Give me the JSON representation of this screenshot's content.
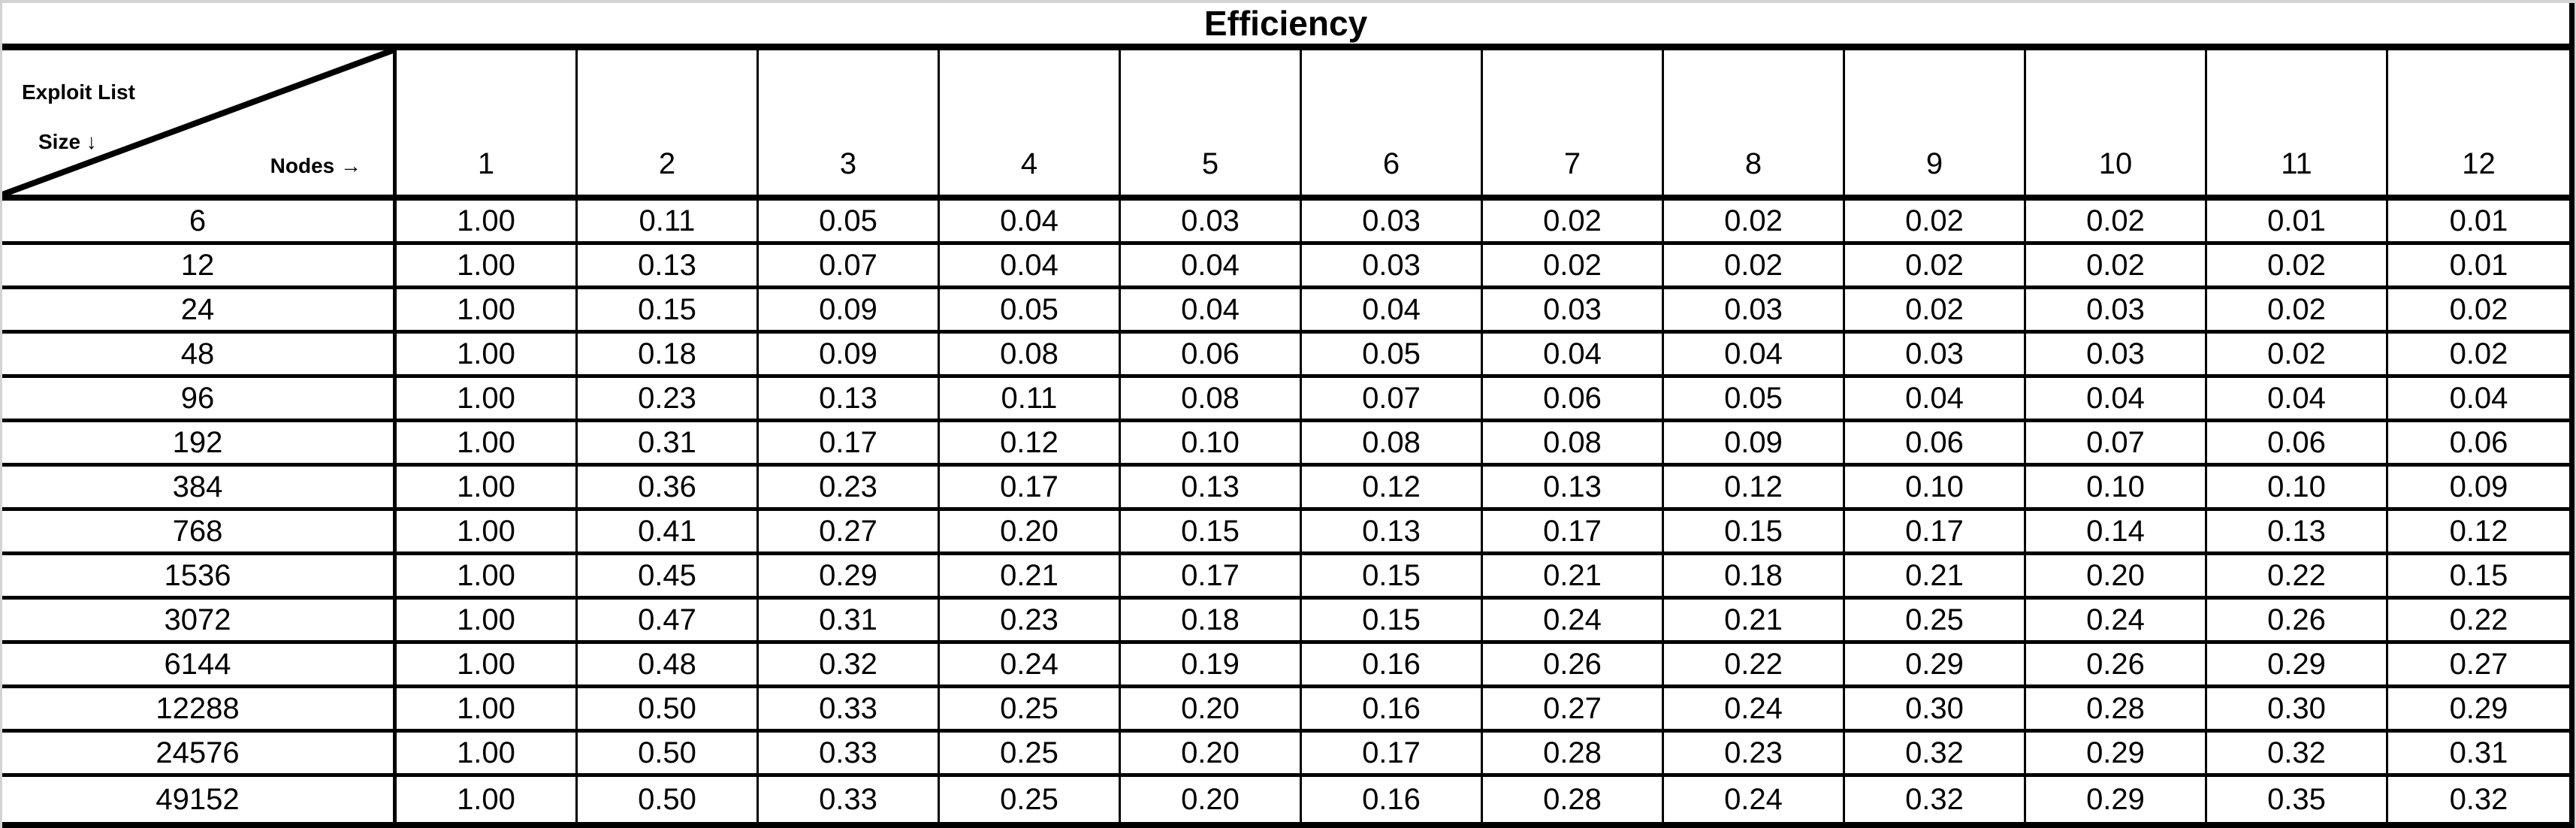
{
  "title": "Efficiency",
  "corner": {
    "line1": "Exploit List",
    "line2": "Size ↓",
    "line3": "Nodes →"
  },
  "columns": [
    "1",
    "2",
    "3",
    "4",
    "5",
    "6",
    "7",
    "8",
    "9",
    "10",
    "11",
    "12"
  ],
  "rows": [
    {
      "label": "6",
      "values": [
        "1.00",
        "0.11",
        "0.05",
        "0.04",
        "0.03",
        "0.03",
        "0.02",
        "0.02",
        "0.02",
        "0.02",
        "0.01",
        "0.01"
      ]
    },
    {
      "label": "12",
      "values": [
        "1.00",
        "0.13",
        "0.07",
        "0.04",
        "0.04",
        "0.03",
        "0.02",
        "0.02",
        "0.02",
        "0.02",
        "0.02",
        "0.01"
      ]
    },
    {
      "label": "24",
      "values": [
        "1.00",
        "0.15",
        "0.09",
        "0.05",
        "0.04",
        "0.04",
        "0.03",
        "0.03",
        "0.02",
        "0.03",
        "0.02",
        "0.02"
      ]
    },
    {
      "label": "48",
      "values": [
        "1.00",
        "0.18",
        "0.09",
        "0.08",
        "0.06",
        "0.05",
        "0.04",
        "0.04",
        "0.03",
        "0.03",
        "0.02",
        "0.02"
      ]
    },
    {
      "label": "96",
      "values": [
        "1.00",
        "0.23",
        "0.13",
        "0.11",
        "0.08",
        "0.07",
        "0.06",
        "0.05",
        "0.04",
        "0.04",
        "0.04",
        "0.04"
      ]
    },
    {
      "label": "192",
      "values": [
        "1.00",
        "0.31",
        "0.17",
        "0.12",
        "0.10",
        "0.08",
        "0.08",
        "0.09",
        "0.06",
        "0.07",
        "0.06",
        "0.06"
      ]
    },
    {
      "label": "384",
      "values": [
        "1.00",
        "0.36",
        "0.23",
        "0.17",
        "0.13",
        "0.12",
        "0.13",
        "0.12",
        "0.10",
        "0.10",
        "0.10",
        "0.09"
      ]
    },
    {
      "label": "768",
      "values": [
        "1.00",
        "0.41",
        "0.27",
        "0.20",
        "0.15",
        "0.13",
        "0.17",
        "0.15",
        "0.17",
        "0.14",
        "0.13",
        "0.12"
      ]
    },
    {
      "label": "1536",
      "values": [
        "1.00",
        "0.45",
        "0.29",
        "0.21",
        "0.17",
        "0.15",
        "0.21",
        "0.18",
        "0.21",
        "0.20",
        "0.22",
        "0.15"
      ]
    },
    {
      "label": "3072",
      "values": [
        "1.00",
        "0.47",
        "0.31",
        "0.23",
        "0.18",
        "0.15",
        "0.24",
        "0.21",
        "0.25",
        "0.24",
        "0.26",
        "0.22"
      ]
    },
    {
      "label": "6144",
      "values": [
        "1.00",
        "0.48",
        "0.32",
        "0.24",
        "0.19",
        "0.16",
        "0.26",
        "0.22",
        "0.29",
        "0.26",
        "0.29",
        "0.27"
      ]
    },
    {
      "label": "12288",
      "values": [
        "1.00",
        "0.50",
        "0.33",
        "0.25",
        "0.20",
        "0.16",
        "0.27",
        "0.24",
        "0.30",
        "0.28",
        "0.30",
        "0.29"
      ]
    },
    {
      "label": "24576",
      "values": [
        "1.00",
        "0.50",
        "0.33",
        "0.25",
        "0.20",
        "0.17",
        "0.28",
        "0.23",
        "0.32",
        "0.29",
        "0.32",
        "0.31"
      ]
    },
    {
      "label": "49152",
      "values": [
        "1.00",
        "0.50",
        "0.33",
        "0.25",
        "0.20",
        "0.16",
        "0.28",
        "0.24",
        "0.32",
        "0.29",
        "0.35",
        "0.32"
      ]
    }
  ],
  "colors": {
    "border": "#000000",
    "background": "#ffffff",
    "page_edge": "#d3d3d3",
    "text": "#000000"
  },
  "chart_data": {
    "type": "table",
    "title": "Efficiency",
    "xlabel": "Nodes →",
    "ylabel": "Exploit List Size ↓",
    "categories": [
      1,
      2,
      3,
      4,
      5,
      6,
      7,
      8,
      9,
      10,
      11,
      12
    ],
    "row_labels": [
      6,
      12,
      24,
      48,
      96,
      192,
      384,
      768,
      1536,
      3072,
      6144,
      12288,
      24576,
      49152
    ],
    "values": [
      [
        1.0,
        0.11,
        0.05,
        0.04,
        0.03,
        0.03,
        0.02,
        0.02,
        0.02,
        0.02,
        0.01,
        0.01
      ],
      [
        1.0,
        0.13,
        0.07,
        0.04,
        0.04,
        0.03,
        0.02,
        0.02,
        0.02,
        0.02,
        0.02,
        0.01
      ],
      [
        1.0,
        0.15,
        0.09,
        0.05,
        0.04,
        0.04,
        0.03,
        0.03,
        0.02,
        0.03,
        0.02,
        0.02
      ],
      [
        1.0,
        0.18,
        0.09,
        0.08,
        0.06,
        0.05,
        0.04,
        0.04,
        0.03,
        0.03,
        0.02,
        0.02
      ],
      [
        1.0,
        0.23,
        0.13,
        0.11,
        0.08,
        0.07,
        0.06,
        0.05,
        0.04,
        0.04,
        0.04,
        0.04
      ],
      [
        1.0,
        0.31,
        0.17,
        0.12,
        0.1,
        0.08,
        0.08,
        0.09,
        0.06,
        0.07,
        0.06,
        0.06
      ],
      [
        1.0,
        0.36,
        0.23,
        0.17,
        0.13,
        0.12,
        0.13,
        0.12,
        0.1,
        0.1,
        0.1,
        0.09
      ],
      [
        1.0,
        0.41,
        0.27,
        0.2,
        0.15,
        0.13,
        0.17,
        0.15,
        0.17,
        0.14,
        0.13,
        0.12
      ],
      [
        1.0,
        0.45,
        0.29,
        0.21,
        0.17,
        0.15,
        0.21,
        0.18,
        0.21,
        0.2,
        0.22,
        0.15
      ],
      [
        1.0,
        0.47,
        0.31,
        0.23,
        0.18,
        0.15,
        0.24,
        0.21,
        0.25,
        0.24,
        0.26,
        0.22
      ],
      [
        1.0,
        0.48,
        0.32,
        0.24,
        0.19,
        0.16,
        0.26,
        0.22,
        0.29,
        0.26,
        0.29,
        0.27
      ],
      [
        1.0,
        0.5,
        0.33,
        0.25,
        0.2,
        0.16,
        0.27,
        0.24,
        0.3,
        0.28,
        0.3,
        0.29
      ],
      [
        1.0,
        0.5,
        0.33,
        0.25,
        0.2,
        0.17,
        0.28,
        0.23,
        0.32,
        0.29,
        0.32,
        0.31
      ],
      [
        1.0,
        0.5,
        0.33,
        0.25,
        0.2,
        0.16,
        0.28,
        0.24,
        0.32,
        0.29,
        0.35,
        0.32
      ]
    ],
    "legend_position": "none",
    "grid": true
  }
}
